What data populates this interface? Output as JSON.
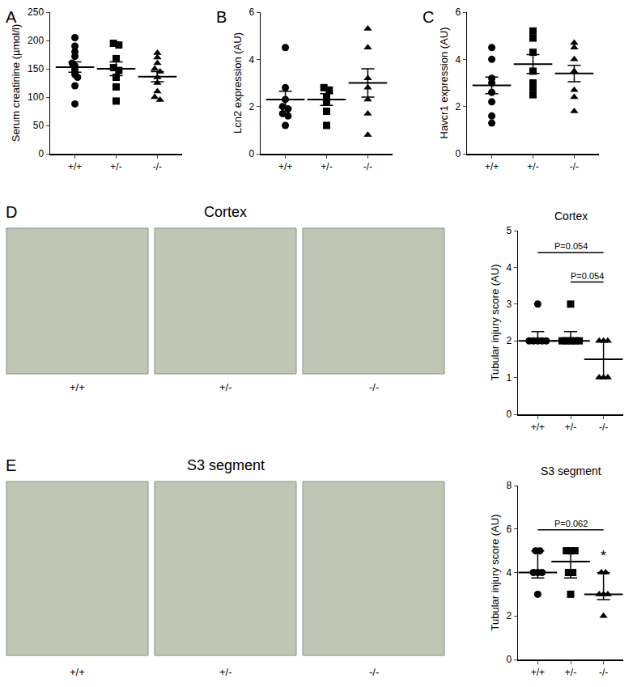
{
  "chart_data": [
    {
      "panel": "A",
      "type": "scatter",
      "y_label": "Serum creatinine (µmol/l)",
      "categories": [
        "+/+",
        "+/-",
        "-/-"
      ],
      "markers": [
        "circle",
        "square",
        "triangle"
      ],
      "color": "#000000",
      "values": [
        [
          205,
          190,
          180,
          172,
          160,
          155,
          150,
          145,
          140,
          135,
          120,
          88
        ],
        [
          195,
          192,
          168,
          152,
          147,
          135,
          118,
          93
        ],
        [
          178,
          170,
          160,
          150,
          145,
          135,
          125,
          110,
          100,
          95
        ]
      ],
      "mean": [
        153,
        150,
        136
      ],
      "sem": [
        9,
        12,
        9
      ],
      "ylim": [
        0,
        250
      ],
      "yticks": [
        0,
        50,
        100,
        150,
        200,
        250
      ]
    },
    {
      "panel": "B",
      "type": "scatter",
      "y_label": "Lcn2 expression (AU)",
      "categories": [
        "+/+",
        "+/-",
        "-/-"
      ],
      "markers": [
        "circle",
        "square",
        "triangle"
      ],
      "color": "#000000",
      "values": [
        [
          4.5,
          2.8,
          2.3,
          2.0,
          1.9,
          1.7,
          1.6,
          1.2
        ],
        [
          2.8,
          2.7,
          2.4,
          2.2,
          1.8,
          1.2
        ],
        [
          5.3,
          4.5,
          3.2,
          2.8,
          2.3,
          1.7,
          0.8
        ]
      ],
      "mean": [
        2.3,
        2.3,
        3.0
      ],
      "sem": [
        0.35,
        0.25,
        0.6
      ],
      "ylim": [
        0,
        6
      ],
      "yticks": [
        0,
        2,
        4,
        6
      ]
    },
    {
      "panel": "C",
      "type": "scatter",
      "y_label": "Havcr1 expression (AU)",
      "categories": [
        "+/+",
        "+/-",
        "-/-"
      ],
      "markers": [
        "circle",
        "square",
        "triangle"
      ],
      "color": "#000000",
      "values": [
        [
          4.5,
          4.0,
          3.2,
          3.0,
          2.6,
          2.2,
          1.6,
          1.3
        ],
        [
          5.2,
          4.9,
          4.3,
          3.5,
          3.0,
          2.8,
          2.5
        ],
        [
          4.7,
          4.5,
          4.0,
          3.5,
          2.7,
          2.4,
          1.8
        ]
      ],
      "mean": [
        2.9,
        3.8,
        3.4
      ],
      "sem": [
        0.35,
        0.4,
        0.35
      ],
      "ylim": [
        0,
        6
      ],
      "yticks": [
        0,
        2,
        4,
        6
      ]
    },
    {
      "panel": "D",
      "type": "scatter",
      "image_heading": "Cortex",
      "image_labels": [
        "+/+",
        "+/-",
        "-/-"
      ],
      "title": "Cortex",
      "y_label": "Tubular injury score (AU)",
      "categories": [
        "+/+",
        "+/-",
        "-/-"
      ],
      "markers": [
        "circle",
        "square",
        "triangle"
      ],
      "color": "#000000",
      "values": [
        [
          3,
          2,
          2,
          2,
          2,
          2
        ],
        [
          3,
          2,
          2,
          2,
          2,
          2
        ],
        [
          2,
          2,
          2,
          1,
          1,
          1
        ]
      ],
      "median": [
        2,
        2,
        1.5
      ],
      "iqr_low": [
        2,
        2,
        1
      ],
      "iqr_high": [
        2.25,
        2.25,
        2
      ],
      "comparisons": [
        {
          "from": "+/+",
          "to": "-/-",
          "label": "P=0.054"
        },
        {
          "from": "+/-",
          "to": "-/-",
          "label": "P=0.054"
        }
      ],
      "ylim": [
        0,
        5
      ],
      "yticks": [
        0,
        1,
        2,
        3,
        4,
        5
      ]
    },
    {
      "panel": "E",
      "type": "scatter",
      "image_heading": "S3 segment",
      "image_labels": [
        "+/+",
        "+/-",
        "-/-"
      ],
      "title": "S3 segment",
      "y_label": "Tubular injury score (AU)",
      "categories": [
        "+/+",
        "+/-",
        "-/-"
      ],
      "markers": [
        "circle",
        "square",
        "triangle"
      ],
      "color": "#000000",
      "values": [
        [
          5,
          5,
          4,
          4,
          4,
          3
        ],
        [
          5,
          5,
          5,
          4,
          4,
          3
        ],
        [
          4,
          4,
          3,
          3,
          3,
          2
        ]
      ],
      "median": [
        4,
        4.5,
        3
      ],
      "iqr_low": [
        3.75,
        3.75,
        2.75
      ],
      "iqr_high": [
        5,
        5,
        4
      ],
      "comparisons": [
        {
          "from": "+/+",
          "to": "-/-",
          "label": "P=0.062"
        }
      ],
      "significance": [
        {
          "category": "-/-",
          "label": "*"
        }
      ],
      "ylim": [
        0,
        8
      ],
      "yticks": [
        0,
        2,
        4,
        6,
        8
      ]
    }
  ]
}
